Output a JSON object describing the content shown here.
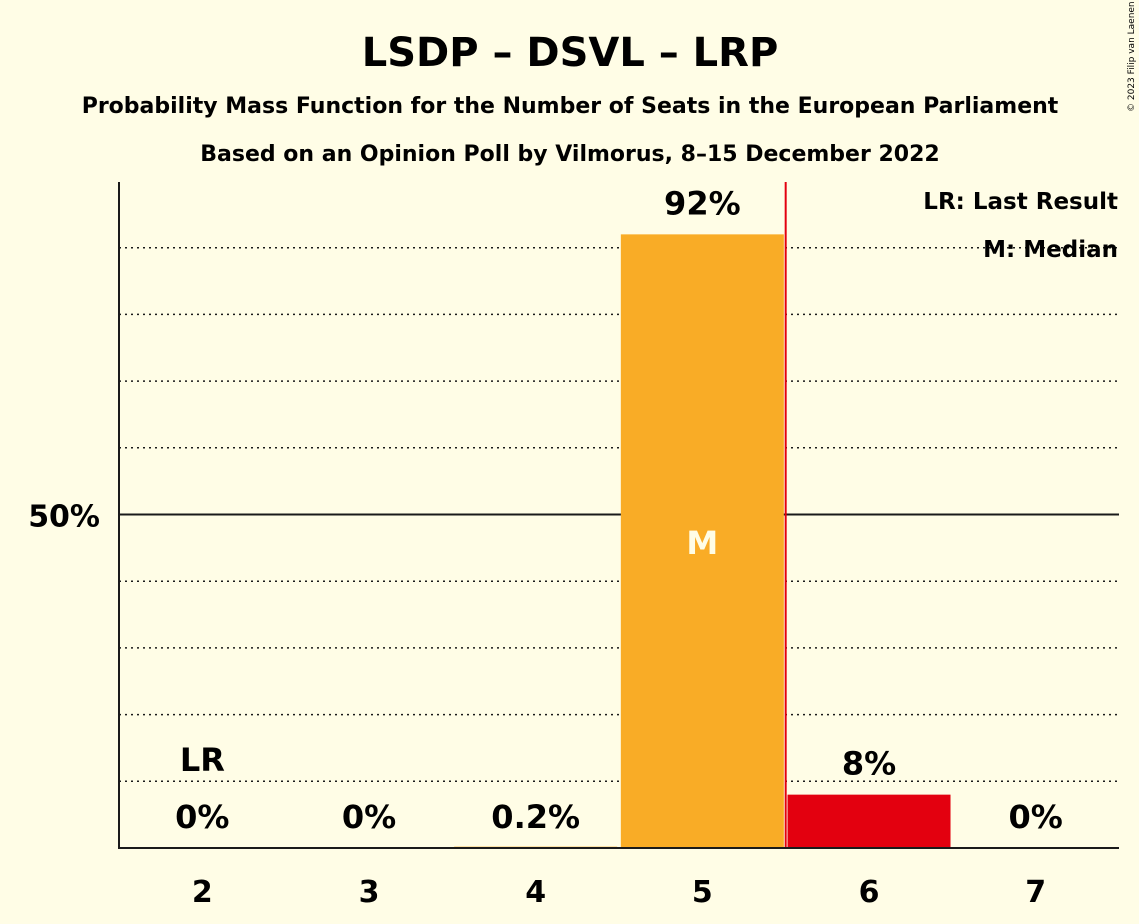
{
  "chart_data": {
    "type": "bar",
    "title": "LSDP – DSVL – LRP",
    "subtitle": "Probability Mass Function for the Number of Seats in the European Parliament",
    "subtitle2": "Based on an Opinion Poll by Vilmorus, 8–15 December 2022",
    "categories": [
      "2",
      "3",
      "4",
      "5",
      "6",
      "7"
    ],
    "values": [
      0,
      0,
      0.2,
      92,
      8,
      0
    ],
    "value_labels": [
      "0%",
      "0%",
      "0.2%",
      "92%",
      "8%",
      "0%"
    ],
    "ylim": [
      0,
      100
    ],
    "y_ticks": [
      {
        "value": 50,
        "label": "50%"
      }
    ],
    "gridlines": [
      10,
      20,
      30,
      40,
      60,
      70,
      80,
      90
    ],
    "last_result": {
      "category": "2",
      "label": "LR"
    },
    "median": {
      "category": "5",
      "label": "M"
    },
    "majority_line_after_category": "5",
    "grid": true,
    "legend_position": "top-right",
    "legend": [
      "LR: Last Result",
      "M: Median"
    ],
    "colors": {
      "background": "#fffde6",
      "bar_median": "#f9ac26",
      "bar_above": "#e3000f",
      "majority_line": "#e3000f",
      "text": "#1a1a1a"
    }
  },
  "copyright": "© 2023 Filip van Laenen"
}
